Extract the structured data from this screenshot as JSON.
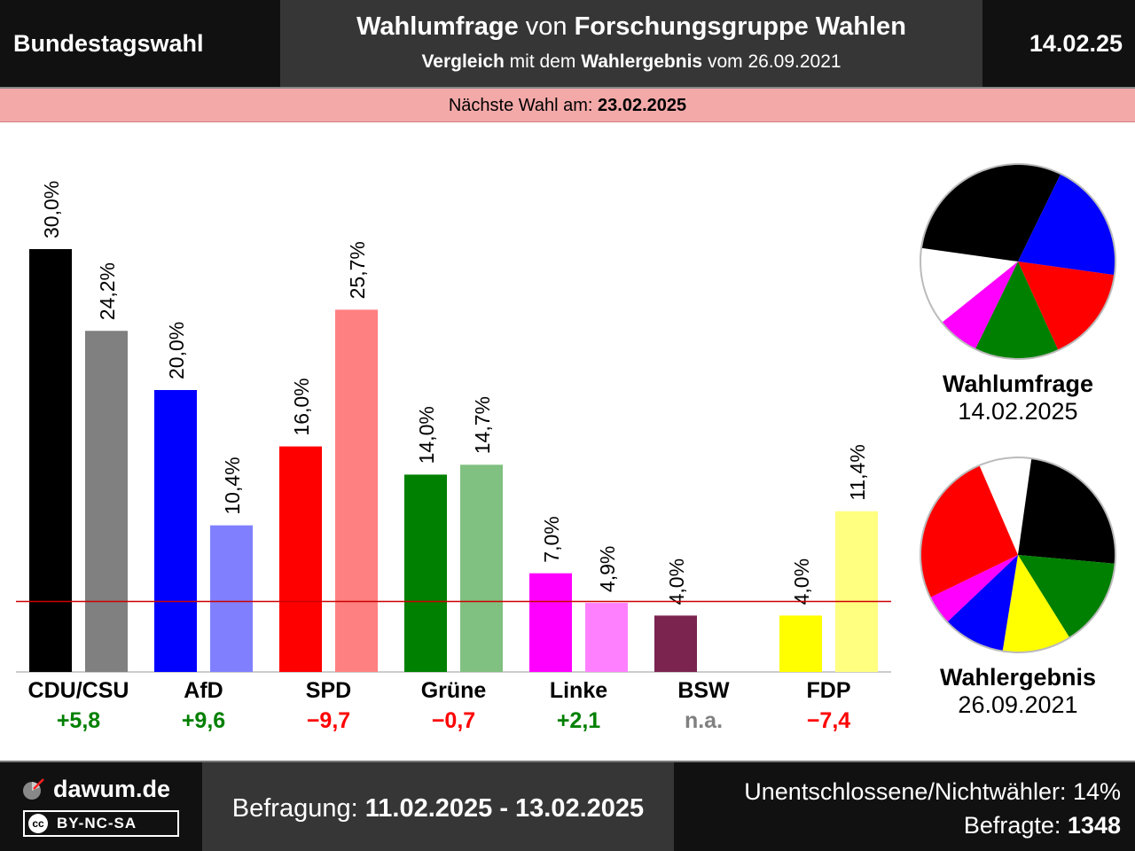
{
  "header": {
    "election": "Bundestagswahl",
    "title_part1": "Wahlumfrage",
    "title_part2": " von ",
    "title_part3": "Forschungsgruppe Wahlen",
    "subtitle_part1": "Vergleich",
    "subtitle_part2": " mit dem ",
    "subtitle_part3": "Wahlergebnis",
    "subtitle_part4": " vom 26.09.2021",
    "date": "14.02.25"
  },
  "next_election": {
    "label": "Nächste Wahl am: ",
    "date": "23.02.2025"
  },
  "colors": {
    "CDU/CSU": "#000000",
    "AfD": "#0000ff",
    "SPD": "#ff0000",
    "Grüne": "#008000",
    "Linke": "#ff00ff",
    "BSW": "#7b2450",
    "FDP": "#ffff00",
    "CDU/CSU_prev": "#808080",
    "AfD_prev": "#8080ff",
    "SPD_prev": "#ff8080",
    "Grüne_prev": "#80c080",
    "Linke_prev": "#ff80ff",
    "FDP_prev": "#ffff80",
    "positive": "#008000",
    "negative": "#ff0000",
    "na": "#808080",
    "threshold": "#cc0000"
  },
  "chart_data": [
    {
      "type": "bar",
      "categories": [
        "CDU/CSU",
        "AfD",
        "SPD",
        "Grüne",
        "Linke",
        "BSW",
        "FDP"
      ],
      "series": [
        {
          "name": "Wahlumfrage",
          "values": [
            30.0,
            20.0,
            16.0,
            14.0,
            7.0,
            4.0,
            4.0
          ],
          "labels": [
            "30,0%",
            "20,0%",
            "16,0%",
            "14,0%",
            "7,0%",
            "4,0%",
            "4,0%"
          ]
        },
        {
          "name": "Wahlergebnis",
          "values": [
            24.2,
            10.4,
            25.7,
            14.7,
            4.9,
            null,
            11.4
          ],
          "labels": [
            "24,2%",
            "10,4%",
            "25,7%",
            "14,7%",
            "4,9%",
            "",
            "11,4%"
          ]
        }
      ],
      "changes": [
        "+5,8",
        "+9,6",
        "−9,7",
        "−0,7",
        "+2,1",
        "n.a.",
        "−7,4"
      ],
      "change_sign": [
        "positive",
        "positive",
        "negative",
        "negative",
        "positive",
        "na",
        "negative"
      ],
      "threshold": 5,
      "ylim": [
        0,
        30
      ]
    },
    {
      "type": "pie",
      "title": "Wahlumfrage",
      "subtitle": "14.02.2025",
      "slices": [
        {
          "label": "CDU/CSU",
          "value": 30.0
        },
        {
          "label": "AfD",
          "value": 20.0
        },
        {
          "label": "SPD",
          "value": 16.0
        },
        {
          "label": "Grüne",
          "value": 14.0
        },
        {
          "label": "Linke",
          "value": 7.0
        }
      ]
    },
    {
      "type": "pie",
      "title": "Wahlergebnis",
      "subtitle": "26.09.2021",
      "slices": [
        {
          "label": "CDU/CSU",
          "value": 24.2
        },
        {
          "label": "Grüne",
          "value": 14.7
        },
        {
          "label": "FDP",
          "value": 11.4
        },
        {
          "label": "AfD",
          "value": 10.4
        },
        {
          "label": "Linke",
          "value": 4.9
        },
        {
          "label": "SPD",
          "value": 25.7
        }
      ]
    }
  ],
  "footer": {
    "site": "dawum.de",
    "license_icon": "cc",
    "license": "BY-NC-SA",
    "survey_label": "Befragung: ",
    "survey_dates": "11.02.2025 - 13.02.2025",
    "undecided": "Unentschlossene/Nichtwähler: 14%",
    "respondents_label": "Befragte: ",
    "respondents_value": "1348"
  }
}
